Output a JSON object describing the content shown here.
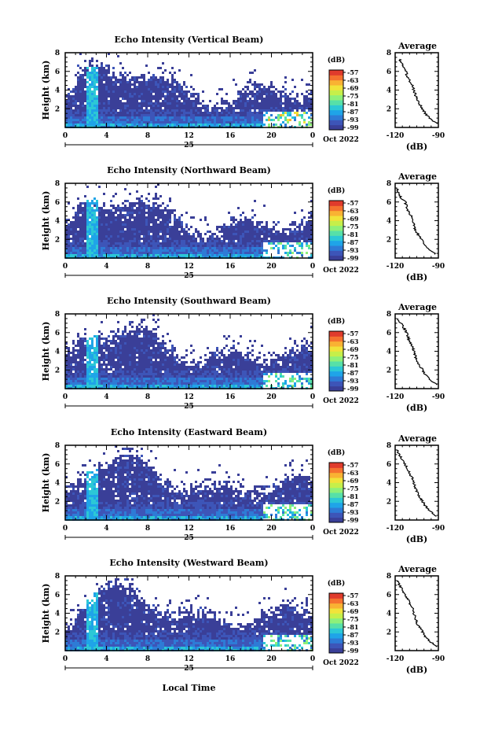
{
  "figure": {
    "xlabel": "Local Time",
    "date_label": "25",
    "month_label": "Oct 2022",
    "avg_title": "Average",
    "avg_xlabel": "(dB)",
    "colorbar_unit": "(dB)"
  },
  "colorbar": {
    "ticks": [
      "-57",
      "-63",
      "-69",
      "-75",
      "-81",
      "-87",
      "-93",
      "-99"
    ],
    "colors": [
      "#3a3f98",
      "#3d55b8",
      "#2e7bd6",
      "#1fa4e8",
      "#2cc8d6",
      "#57e0a8",
      "#8ef07a",
      "#c6ef4a",
      "#f1e33a",
      "#f9b233",
      "#f5722f",
      "#e03b2c"
    ]
  },
  "chart_data": [
    {
      "type": "heatmap",
      "title": "Echo Intensity (Vertical Beam)",
      "ylabel": "Height (km)",
      "xlim": [
        0,
        24
      ],
      "ylim": [
        0,
        8
      ],
      "xticks": [
        "0",
        "4",
        "8",
        "12",
        "16",
        "20",
        "0"
      ],
      "yticks": [
        "2",
        "4",
        "6",
        "8"
      ],
      "color_range_db": [
        -99,
        -57
      ],
      "avg_profile": {
        "xlim": [
          -120,
          -90
        ],
        "xticks": [
          "-120",
          "-90"
        ],
        "yticks": [
          "2",
          "4",
          "6",
          "8"
        ],
        "height_km": [
          0.4,
          1.0,
          1.5,
          2.0,
          2.5,
          3.0,
          3.5,
          4.0,
          4.5,
          5.0,
          5.5,
          6.0,
          6.5,
          7.0,
          7.3
        ],
        "db": [
          -91,
          -96,
          -99,
          -101,
          -103,
          -105,
          -106,
          -107,
          -108,
          -110,
          -112,
          -112,
          -114,
          -116,
          -117
        ]
      }
    },
    {
      "type": "heatmap",
      "title": "Echo Intensity (Northward Beam)",
      "ylabel": "Height (km)",
      "xlim": [
        0,
        24
      ],
      "ylim": [
        0,
        8
      ],
      "xticks": [
        "0",
        "4",
        "8",
        "12",
        "16",
        "20",
        "0"
      ],
      "yticks": [
        "2",
        "4",
        "6",
        "8"
      ],
      "color_range_db": [
        -99,
        -57
      ],
      "avg_profile": {
        "xlim": [
          -120,
          -90
        ],
        "xticks": [
          "-120",
          "-90"
        ],
        "yticks": [
          "2",
          "4",
          "6",
          "8"
        ],
        "height_km": [
          0.4,
          1.0,
          1.5,
          2.0,
          2.5,
          3.0,
          3.5,
          4.0,
          4.5,
          5.0,
          5.5,
          6.0,
          6.5,
          7.0,
          7.5
        ],
        "db": [
          -92,
          -97,
          -100,
          -102,
          -104,
          -106,
          -107,
          -108,
          -109,
          -111,
          -112,
          -113,
          -116,
          -118,
          -119
        ]
      }
    },
    {
      "type": "heatmap",
      "title": "Echo Intensity (Southward Beam)",
      "ylabel": "Height (km)",
      "xlim": [
        0,
        24
      ],
      "ylim": [
        0,
        8
      ],
      "xticks": [
        "0",
        "4",
        "8",
        "12",
        "16",
        "20",
        "0"
      ],
      "yticks": [
        "2",
        "4",
        "6",
        "8"
      ],
      "color_range_db": [
        -99,
        -57
      ],
      "avg_profile": {
        "xlim": [
          -120,
          -90
        ],
        "xticks": [
          "-120",
          "-90"
        ],
        "yticks": [
          "2",
          "4",
          "6",
          "8"
        ],
        "height_km": [
          0.4,
          1.0,
          1.5,
          2.0,
          2.5,
          3.0,
          3.5,
          4.0,
          4.5,
          5.0,
          5.5,
          6.0,
          6.5,
          7.0,
          7.5
        ],
        "db": [
          -91,
          -96,
          -99,
          -101,
          -103,
          -105,
          -106,
          -107,
          -108,
          -110,
          -111,
          -112,
          -114,
          -116,
          -118
        ]
      }
    },
    {
      "type": "heatmap",
      "title": "Echo Intensity (Eastward Beam)",
      "ylabel": "Height (km)",
      "xlim": [
        0,
        24
      ],
      "ylim": [
        0,
        8
      ],
      "xticks": [
        "0",
        "4",
        "8",
        "12",
        "16",
        "20",
        "0"
      ],
      "yticks": [
        "2",
        "4",
        "6",
        "8"
      ],
      "color_range_db": [
        -99,
        -57
      ],
      "avg_profile": {
        "xlim": [
          -120,
          -90
        ],
        "xticks": [
          "-120",
          "-90"
        ],
        "yticks": [
          "2",
          "4",
          "6",
          "8"
        ],
        "height_km": [
          0.4,
          1.0,
          1.5,
          2.0,
          2.5,
          3.0,
          3.5,
          4.0,
          4.5,
          5.0,
          5.5,
          6.0,
          6.5,
          7.0,
          7.5
        ],
        "db": [
          -92,
          -96,
          -99,
          -101,
          -103,
          -105,
          -106,
          -107,
          -108,
          -110,
          -112,
          -113,
          -115,
          -117,
          -119
        ]
      }
    },
    {
      "type": "heatmap",
      "title": "Echo Intensity (Westward Beam)",
      "ylabel": "Height (km)",
      "xlim": [
        0,
        24
      ],
      "ylim": [
        0,
        8
      ],
      "xticks": [
        "0",
        "4",
        "8",
        "12",
        "16",
        "20",
        "0"
      ],
      "yticks": [
        "2",
        "4",
        "6",
        "8"
      ],
      "color_range_db": [
        -99,
        -57
      ],
      "avg_profile": {
        "xlim": [
          -120,
          -90
        ],
        "xticks": [
          "-120",
          "-90"
        ],
        "yticks": [
          "2",
          "4",
          "6",
          "8"
        ],
        "height_km": [
          0.4,
          1.0,
          1.5,
          2.0,
          2.5,
          3.0,
          3.5,
          4.0,
          4.5,
          5.0,
          5.5,
          6.0,
          6.5,
          7.0,
          7.5
        ],
        "db": [
          -91,
          -96,
          -99,
          -101,
          -103,
          -105,
          -106,
          -107,
          -108,
          -110,
          -111,
          -113,
          -115,
          -117,
          -118
        ]
      }
    }
  ]
}
